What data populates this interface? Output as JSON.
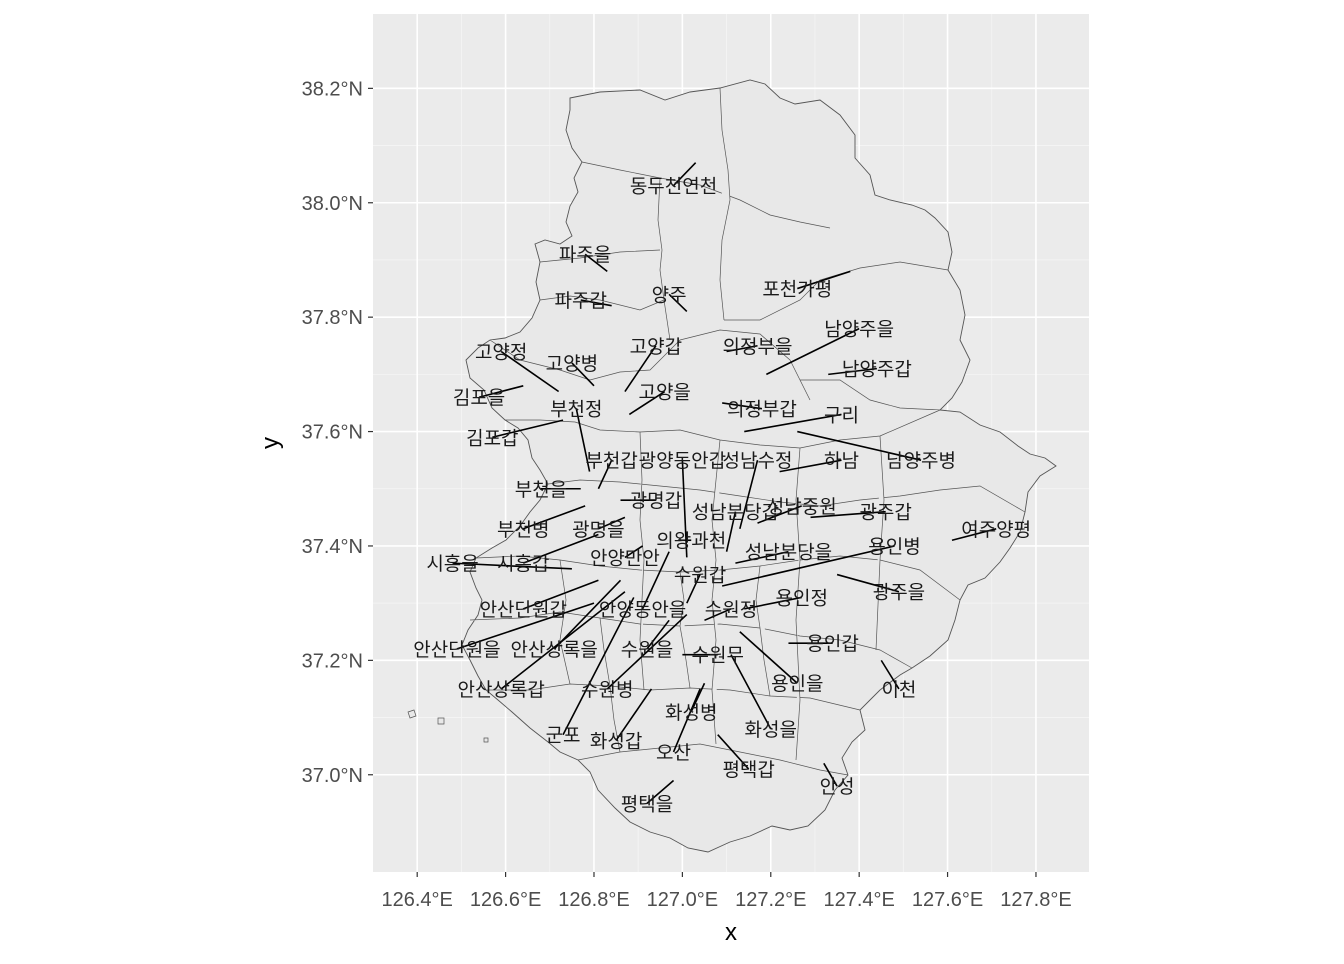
{
  "chart_data": {
    "type": "map",
    "xlabel": "x",
    "ylabel": "y",
    "xlim": [
      126.3,
      127.92
    ],
    "ylim": [
      36.83,
      38.33
    ],
    "x_ticks": [
      {
        "value": 126.4,
        "label": "126.4°E"
      },
      {
        "value": 126.6,
        "label": "126.6°E"
      },
      {
        "value": 126.8,
        "label": "126.8°E"
      },
      {
        "value": 127.0,
        "label": "127.0°E"
      },
      {
        "value": 127.2,
        "label": "127.2°E"
      },
      {
        "value": 127.4,
        "label": "127.4°E"
      },
      {
        "value": 127.6,
        "label": "127.6°E"
      },
      {
        "value": 127.8,
        "label": "127.8°E"
      }
    ],
    "y_ticks": [
      {
        "value": 37.0,
        "label": "37.0°N"
      },
      {
        "value": 37.2,
        "label": "37.2°N"
      },
      {
        "value": 37.4,
        "label": "37.4°N"
      },
      {
        "value": 37.6,
        "label": "37.6°N"
      },
      {
        "value": 37.8,
        "label": "37.8°N"
      },
      {
        "value": 38.0,
        "label": "38.0°N"
      },
      {
        "value": 38.2,
        "label": "38.2°N"
      }
    ],
    "grid": true,
    "panel_background": "#ebebeb",
    "region_fill": "#e8e8e8",
    "border_color": "#555555",
    "labels": [
      {
        "text": "동두천연천",
        "lon": 127.03,
        "lat": 38.07,
        "tlon": 126.98,
        "tlat": 38.03
      },
      {
        "text": "파주을",
        "lon": 126.83,
        "lat": 37.88,
        "tlon": 126.78,
        "tlat": 37.91
      },
      {
        "text": "양주",
        "lon": 127.01,
        "lat": 37.81,
        "tlon": 126.97,
        "tlat": 37.84
      },
      {
        "text": "파주갑",
        "lon": 126.84,
        "lat": 37.82,
        "tlon": 126.77,
        "tlat": 37.83
      },
      {
        "text": "포천가평",
        "lon": 127.38,
        "lat": 37.88,
        "tlon": 127.26,
        "tlat": 37.85
      },
      {
        "text": "남양주을",
        "lon": 127.19,
        "lat": 37.7,
        "tlon": 127.4,
        "tlat": 37.78
      },
      {
        "text": "의정부을",
        "lon": 127.1,
        "lat": 37.74,
        "tlon": 127.17,
        "tlat": 37.75
      },
      {
        "text": "고양갑",
        "lon": 126.87,
        "lat": 37.67,
        "tlon": 126.94,
        "tlat": 37.75
      },
      {
        "text": "고양정",
        "lon": 126.72,
        "lat": 37.67,
        "tlon": 126.59,
        "tlat": 37.74
      },
      {
        "text": "고양병",
        "lon": 126.8,
        "lat": 37.68,
        "tlon": 126.75,
        "tlat": 37.72
      },
      {
        "text": "남양주갑",
        "lon": 127.33,
        "lat": 37.7,
        "tlon": 127.44,
        "tlat": 37.71
      },
      {
        "text": "김포을",
        "lon": 126.64,
        "lat": 37.68,
        "tlon": 126.54,
        "tlat": 37.66
      },
      {
        "text": "고양을",
        "lon": 126.88,
        "lat": 37.63,
        "tlon": 126.96,
        "tlat": 37.67
      },
      {
        "text": "부천정",
        "lon": 126.79,
        "lat": 37.53,
        "tlon": 126.76,
        "tlat": 37.64
      },
      {
        "text": "의정부갑",
        "lon": 127.09,
        "lat": 37.65,
        "tlon": 127.18,
        "tlat": 37.64
      },
      {
        "text": "구리",
        "lon": 127.14,
        "lat": 37.6,
        "tlon": 127.36,
        "tlat": 37.63
      },
      {
        "text": "김포갑",
        "lon": 126.73,
        "lat": 37.62,
        "tlon": 126.57,
        "tlat": 37.59
      },
      {
        "text": "부천갑",
        "lon": 126.81,
        "lat": 37.5,
        "tlon": 126.84,
        "tlat": 37.55
      },
      {
        "text": "광양동안갑",
        "lon": 127.01,
        "lat": 37.38,
        "tlon": 127.0,
        "tlat": 37.55
      },
      {
        "text": "성남수정",
        "lon": 127.13,
        "lat": 37.43,
        "tlon": 127.17,
        "tlat": 37.55
      },
      {
        "text": "하남",
        "lon": 127.22,
        "lat": 37.53,
        "tlon": 127.36,
        "tlat": 37.55
      },
      {
        "text": "남양주병",
        "lon": 127.26,
        "lat": 37.6,
        "tlon": 127.54,
        "tlat": 37.55
      },
      {
        "text": "부천을",
        "lon": 126.77,
        "lat": 37.5,
        "tlon": 126.68,
        "tlat": 37.5
      },
      {
        "text": "광명갑",
        "lon": 126.86,
        "lat": 37.48,
        "tlon": 126.94,
        "tlat": 37.48
      },
      {
        "text": "성남분당갑",
        "lon": 127.1,
        "lat": 37.39,
        "tlon": 127.12,
        "tlat": 37.46
      },
      {
        "text": "성남중원",
        "lon": 127.17,
        "lat": 37.44,
        "tlon": 127.27,
        "tlat": 37.47
      },
      {
        "text": "광주갑",
        "lon": 127.29,
        "lat": 37.45,
        "tlon": 127.46,
        "tlat": 37.46
      },
      {
        "text": "부천병",
        "lon": 126.78,
        "lat": 37.47,
        "tlon": 126.64,
        "tlat": 37.43
      },
      {
        "text": "광명을",
        "lon": 126.87,
        "lat": 37.45,
        "tlon": 126.81,
        "tlat": 37.43
      },
      {
        "text": "여주양평",
        "lon": 127.61,
        "lat": 37.41,
        "tlon": 127.71,
        "tlat": 37.43
      },
      {
        "text": "의왕과천",
        "lon": 126.99,
        "lat": 37.41,
        "tlon": 127.02,
        "tlat": 37.41
      },
      {
        "text": "용인병",
        "lon": 127.09,
        "lat": 37.33,
        "tlon": 127.48,
        "tlat": 37.4
      },
      {
        "text": "성남분당을",
        "lon": 127.12,
        "lat": 37.37,
        "tlon": 127.24,
        "tlat": 37.39
      },
      {
        "text": "시흥을",
        "lon": 126.75,
        "lat": 37.36,
        "tlon": 126.48,
        "tlat": 37.37
      },
      {
        "text": "시흥갑",
        "lon": 126.81,
        "lat": 37.42,
        "tlon": 126.64,
        "tlat": 37.37
      },
      {
        "text": "안양만안",
        "lon": 126.91,
        "lat": 37.4,
        "tlon": 126.87,
        "tlat": 37.38
      },
      {
        "text": "수원갑",
        "lon": 127.01,
        "lat": 37.3,
        "tlon": 127.04,
        "tlat": 37.35
      },
      {
        "text": "광주을",
        "lon": 127.35,
        "lat": 37.35,
        "tlon": 127.49,
        "tlat": 37.32
      },
      {
        "text": "안산단원갑",
        "lon": 126.81,
        "lat": 37.34,
        "tlon": 126.64,
        "tlat": 37.29
      },
      {
        "text": "안양동안을",
        "lon": 126.97,
        "lat": 37.39,
        "tlon": 126.91,
        "tlat": 37.29
      },
      {
        "text": "수원정",
        "lon": 127.05,
        "lat": 37.27,
        "tlon": 127.11,
        "tlat": 37.29
      },
      {
        "text": "용인정",
        "lon": 127.14,
        "lat": 37.29,
        "tlon": 127.27,
        "tlat": 37.31
      },
      {
        "text": "안산단원을",
        "lon": 126.8,
        "lat": 37.3,
        "tlon": 126.49,
        "tlat": 37.22
      },
      {
        "text": "안산상록을",
        "lon": 126.86,
        "lat": 37.34,
        "tlon": 126.71,
        "tlat": 37.22
      },
      {
        "text": "수원을",
        "lon": 126.97,
        "lat": 37.27,
        "tlon": 126.92,
        "tlat": 37.22
      },
      {
        "text": "용인갑",
        "lon": 127.24,
        "lat": 37.23,
        "tlon": 127.34,
        "tlat": 37.23
      },
      {
        "text": "수원무",
        "lon": 127.0,
        "lat": 37.21,
        "tlon": 127.08,
        "tlat": 37.21
      },
      {
        "text": "안산상록갑",
        "lon": 126.87,
        "lat": 37.32,
        "tlon": 126.59,
        "tlat": 37.15
      },
      {
        "text": "수원병",
        "lon": 127.01,
        "lat": 37.28,
        "tlon": 126.83,
        "tlat": 37.15
      },
      {
        "text": "용인을",
        "lon": 127.13,
        "lat": 37.25,
        "tlon": 127.26,
        "tlat": 37.16
      },
      {
        "text": "이천",
        "lon": 127.45,
        "lat": 37.2,
        "tlon": 127.49,
        "tlat": 37.15
      },
      {
        "text": "화성병",
        "lon": 127.05,
        "lat": 37.16,
        "tlon": 127.02,
        "tlat": 37.11
      },
      {
        "text": "화성을",
        "lon": 127.11,
        "lat": 37.21,
        "tlon": 127.2,
        "tlat": 37.08
      },
      {
        "text": "군포",
        "lon": 126.89,
        "lat": 37.31,
        "tlon": 126.73,
        "tlat": 37.07
      },
      {
        "text": "화성갑",
        "lon": 126.93,
        "lat": 37.15,
        "tlon": 126.85,
        "tlat": 37.06
      },
      {
        "text": "오산",
        "lon": 127.04,
        "lat": 37.15,
        "tlon": 126.98,
        "tlat": 37.04
      },
      {
        "text": "평택갑",
        "lon": 127.08,
        "lat": 37.07,
        "tlon": 127.15,
        "tlat": 37.01
      },
      {
        "text": "안성",
        "lon": 127.32,
        "lat": 37.02,
        "tlon": 127.35,
        "tlat": 36.98
      },
      {
        "text": "평택을",
        "lon": 126.98,
        "lat": 36.99,
        "tlon": 126.92,
        "tlat": 36.95
      }
    ]
  }
}
